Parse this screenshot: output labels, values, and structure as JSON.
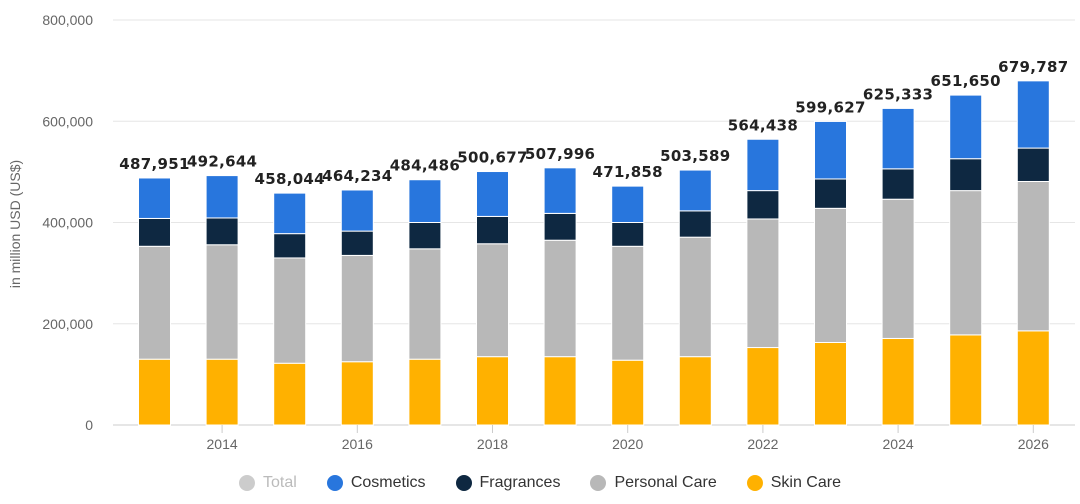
{
  "chart_data": {
    "type": "bar",
    "stacked": true,
    "title": "",
    "xlabel": "",
    "ylabel": "in million USD (US$)",
    "ylim": [
      0,
      800000
    ],
    "yticks": [
      0,
      200000,
      400000,
      600000,
      800000
    ],
    "ytick_labels": [
      "0",
      "200,000",
      "400,000",
      "600,000",
      "800,000"
    ],
    "categories": [
      "2013",
      "2014",
      "2015",
      "2016",
      "2017",
      "2018",
      "2019",
      "2020",
      "2021",
      "2022",
      "2023",
      "2024",
      "2025",
      "2026"
    ],
    "xtick_labels": [
      "",
      "2014",
      "",
      "2016",
      "",
      "2018",
      "",
      "2020",
      "",
      "2022",
      "",
      "2024",
      "",
      "2026"
    ],
    "series": [
      {
        "name": "Skin Care",
        "color": "#ffb100",
        "values": [
          130000,
          130000,
          122000,
          125000,
          130000,
          135000,
          135000,
          128000,
          135000,
          153000,
          163000,
          171000,
          178000,
          186000
        ]
      },
      {
        "name": "Personal Care",
        "color": "#b8b8b8",
        "values": [
          223000,
          226000,
          208000,
          210000,
          218000,
          223000,
          230000,
          225000,
          236000,
          254000,
          265000,
          275000,
          285000,
          295000
        ]
      },
      {
        "name": "Fragrances",
        "color": "#0e2841",
        "values": [
          55000,
          53000,
          48000,
          48000,
          52000,
          54000,
          53000,
          47000,
          52000,
          56000,
          58000,
          60000,
          63000,
          66000
        ]
      },
      {
        "name": "Cosmetics",
        "color": "#2876dd",
        "values": [
          79951,
          83644,
          80044,
          81234,
          84486,
          88677,
          89996,
          71858,
          80589,
          101438,
          113627,
          119333,
          125650,
          132787
        ]
      }
    ],
    "totals": [
      487951,
      492644,
      458044,
      464234,
      484486,
      500677,
      507996,
      471858,
      503589,
      564438,
      599627,
      625333,
      651650,
      679787
    ],
    "total_labels": [
      "487,951",
      "492,644",
      "458,044",
      "464,234",
      "484,486",
      "500,677",
      "507,996",
      "471,858",
      "503,589",
      "564,438",
      "599,627",
      "625,333",
      "651,650",
      "679,787"
    ],
    "legend": [
      {
        "name": "Total",
        "color": "#cccccc",
        "hidden": true
      },
      {
        "name": "Cosmetics",
        "color": "#2876dd",
        "hidden": false
      },
      {
        "name": "Fragrances",
        "color": "#0e2841",
        "hidden": false
      },
      {
        "name": "Personal Care",
        "color": "#b8b8b8",
        "hidden": false
      },
      {
        "name": "Skin Care",
        "color": "#ffb100",
        "hidden": false
      }
    ],
    "legend_position": "bottom-center",
    "grid": true
  }
}
